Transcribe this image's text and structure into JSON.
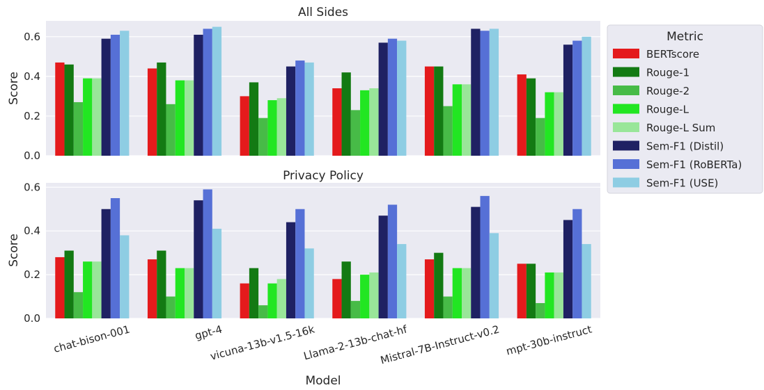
{
  "colors": {
    "plot_background": "#eaeaf2",
    "grid": "#ffffff",
    "series": [
      "#e41a1c",
      "#137a13",
      "#47bb47",
      "#22e622",
      "#99e699",
      "#1f2163",
      "#5670d6",
      "#8ecde3"
    ]
  },
  "legend": {
    "title": "Metric",
    "placement": "right"
  },
  "chart_data": [
    {
      "type": "bar",
      "title": "All Sides",
      "xlabel": "",
      "ylabel": "Score",
      "ylim": [
        0,
        0.68
      ],
      "yticks": [
        "0.0",
        "0.2",
        "0.4",
        "0.6"
      ],
      "grid": true,
      "categories": [
        "chat-bison-001",
        "gpt-4",
        "vicuna-13b-v1.5-16k",
        "Llama-2-13b-chat-hf",
        "Mistral-7B-Instruct-v0.2",
        "mpt-30b-instruct"
      ],
      "series": [
        {
          "name": "BERTscore",
          "values": [
            0.47,
            0.44,
            0.3,
            0.34,
            0.45,
            0.41
          ]
        },
        {
          "name": "Rouge-1",
          "values": [
            0.46,
            0.47,
            0.37,
            0.42,
            0.45,
            0.39
          ]
        },
        {
          "name": "Rouge-2",
          "values": [
            0.27,
            0.26,
            0.19,
            0.23,
            0.25,
            0.19
          ]
        },
        {
          "name": "Rouge-L",
          "values": [
            0.39,
            0.38,
            0.28,
            0.33,
            0.36,
            0.32
          ]
        },
        {
          "name": "Rouge-L Sum",
          "values": [
            0.39,
            0.38,
            0.29,
            0.34,
            0.36,
            0.32
          ]
        },
        {
          "name": "Sem-F1 (Distil)",
          "values": [
            0.59,
            0.61,
            0.45,
            0.57,
            0.64,
            0.56
          ]
        },
        {
          "name": "Sem-F1 (RoBERTa)",
          "values": [
            0.61,
            0.64,
            0.48,
            0.59,
            0.63,
            0.58
          ]
        },
        {
          "name": "Sem-F1 (USE)",
          "values": [
            0.63,
            0.65,
            0.47,
            0.58,
            0.64,
            0.6
          ]
        }
      ]
    },
    {
      "type": "bar",
      "title": "Privacy Policy",
      "xlabel": "Model",
      "ylabel": "Score",
      "ylim": [
        0,
        0.62
      ],
      "yticks": [
        "0.0",
        "0.2",
        "0.4",
        "0.6"
      ],
      "grid": true,
      "categories": [
        "chat-bison-001",
        "gpt-4",
        "vicuna-13b-v1.5-16k",
        "Llama-2-13b-chat-hf",
        "Mistral-7B-Instruct-v0.2",
        "mpt-30b-instruct"
      ],
      "series": [
        {
          "name": "BERTscore",
          "values": [
            0.28,
            0.27,
            0.16,
            0.18,
            0.27,
            0.25
          ]
        },
        {
          "name": "Rouge-1",
          "values": [
            0.31,
            0.31,
            0.23,
            0.26,
            0.3,
            0.25
          ]
        },
        {
          "name": "Rouge-2",
          "values": [
            0.12,
            0.1,
            0.06,
            0.08,
            0.1,
            0.07
          ]
        },
        {
          "name": "Rouge-L",
          "values": [
            0.26,
            0.23,
            0.16,
            0.2,
            0.23,
            0.21
          ]
        },
        {
          "name": "Rouge-L Sum",
          "values": [
            0.26,
            0.23,
            0.18,
            0.21,
            0.23,
            0.21
          ]
        },
        {
          "name": "Sem-F1 (Distil)",
          "values": [
            0.5,
            0.54,
            0.44,
            0.47,
            0.51,
            0.45
          ]
        },
        {
          "name": "Sem-F1 (RoBERTa)",
          "values": [
            0.55,
            0.59,
            0.5,
            0.52,
            0.56,
            0.5
          ]
        },
        {
          "name": "Sem-F1 (USE)",
          "values": [
            0.38,
            0.41,
            0.32,
            0.34,
            0.39,
            0.34
          ]
        }
      ]
    }
  ]
}
